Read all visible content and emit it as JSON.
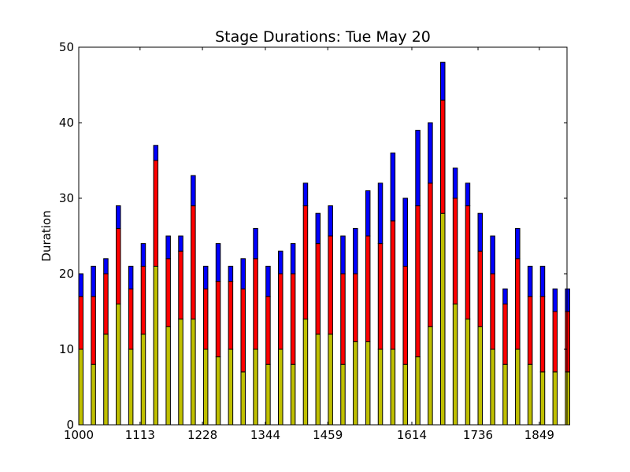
{
  "chart_data": {
    "type": "bar",
    "stacked": true,
    "title": "Stage Durations: Tue May 20",
    "xlabel": "",
    "ylabel": "Duration",
    "ylim": [
      0,
      50
    ],
    "yticks": [
      0,
      10,
      20,
      30,
      40,
      50
    ],
    "xlim": [
      1000,
      1900
    ],
    "xtick_labels": [
      "1000",
      "1113",
      "1228",
      "1344",
      "1459",
      "1614",
      "1736",
      "1849"
    ],
    "xtick_values": [
      1000,
      1113,
      1228,
      1344,
      1459,
      1614,
      1736,
      1849
    ],
    "grid": false,
    "x": [
      1000,
      1023,
      1046,
      1069,
      1092,
      1115,
      1138,
      1161,
      1184,
      1207,
      1230,
      1253,
      1276,
      1299,
      1322,
      1345,
      1368,
      1391,
      1414,
      1437,
      1460,
      1483,
      1506,
      1529,
      1552,
      1575,
      1598,
      1621,
      1644,
      1667,
      1690,
      1713,
      1736,
      1759,
      1782,
      1805,
      1828,
      1851,
      1874,
      1897
    ],
    "series": [
      {
        "color": "#bfbf00",
        "values": [
          10,
          8,
          12,
          16,
          10,
          12,
          21,
          13,
          14,
          14,
          10,
          9,
          10,
          7,
          10,
          8,
          10,
          8,
          14,
          12,
          12,
          8,
          11,
          11,
          10,
          10,
          8,
          9,
          13,
          28,
          16,
          14,
          13,
          10,
          8,
          10,
          8,
          7,
          7,
          7
        ]
      },
      {
        "color": "#ff0000",
        "values": [
          7,
          9,
          8,
          10,
          8,
          9,
          14,
          9,
          9,
          15,
          8,
          10,
          9,
          11,
          12,
          9,
          10,
          12,
          15,
          12,
          13,
          12,
          9,
          14,
          14,
          17,
          13,
          20,
          19,
          15,
          14,
          15,
          10,
          10,
          8,
          12,
          9,
          10,
          8,
          8
        ]
      },
      {
        "color": "#0000ff",
        "values": [
          3,
          4,
          2,
          3,
          3,
          3,
          2,
          3,
          2,
          4,
          3,
          5,
          2,
          4,
          4,
          4,
          3,
          4,
          3,
          4,
          4,
          5,
          6,
          6,
          8,
          9,
          9,
          10,
          8,
          5,
          4,
          3,
          5,
          5,
          2,
          4,
          4,
          4,
          3,
          3
        ]
      }
    ]
  }
}
